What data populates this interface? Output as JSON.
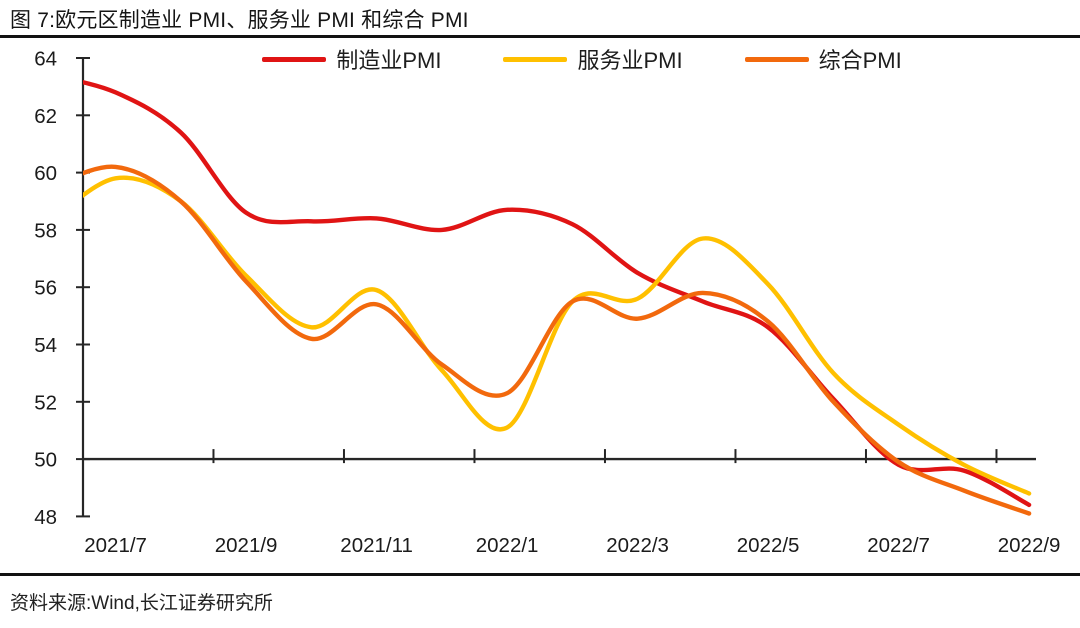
{
  "page": {
    "figure_label": "图 7:欧元区制造业 PMI、服务业 PMI 和综合 PMI",
    "source": "资料来源:Wind,长江证券研究所"
  },
  "chart_data": {
    "type": "line",
    "title": "图 7:欧元区制造业 PMI、服务业 PMI 和综合 PMI",
    "x": [
      "2021/6",
      "2021/7",
      "2021/8",
      "2021/9",
      "2021/10",
      "2021/11",
      "2021/12",
      "2022/1",
      "2022/2",
      "2022/3",
      "2022/4",
      "2022/5",
      "2022/6",
      "2022/7",
      "2022/8",
      "2022/9"
    ],
    "x_tick_labels": [
      "2021/7",
      "2021/9",
      "2021/11",
      "2022/1",
      "2022/3",
      "2022/5",
      "2022/7",
      "2022/9"
    ],
    "y_ticks": [
      48,
      50,
      52,
      54,
      56,
      58,
      60,
      62,
      64
    ],
    "ylim": [
      48,
      64
    ],
    "reference_line": 50,
    "grid": false,
    "smooth": true,
    "legend_position": "top",
    "legend": [
      "制造业PMI",
      "服务业PMI",
      "综合PMI"
    ],
    "axis_color": "#262626",
    "series": [
      {
        "name": "制造业PMI",
        "color": "#e01414",
        "values": [
          63.4,
          62.8,
          61.4,
          58.6,
          58.3,
          58.4,
          58.0,
          58.7,
          58.2,
          56.5,
          55.5,
          54.6,
          52.1,
          49.8,
          49.6,
          48.4
        ]
      },
      {
        "name": "服务业PMI",
        "color": "#ffc000",
        "values": [
          58.3,
          59.8,
          59.0,
          56.4,
          54.6,
          55.9,
          53.1,
          51.1,
          55.5,
          55.6,
          57.7,
          56.1,
          53.0,
          51.2,
          49.8,
          48.8
        ]
      },
      {
        "name": "综合PMI",
        "color": "#f2690d",
        "values": [
          59.5,
          60.2,
          59.0,
          56.2,
          54.2,
          55.4,
          53.3,
          52.3,
          55.5,
          54.9,
          55.8,
          54.8,
          52.0,
          49.9,
          48.9,
          48.1
        ]
      }
    ]
  }
}
